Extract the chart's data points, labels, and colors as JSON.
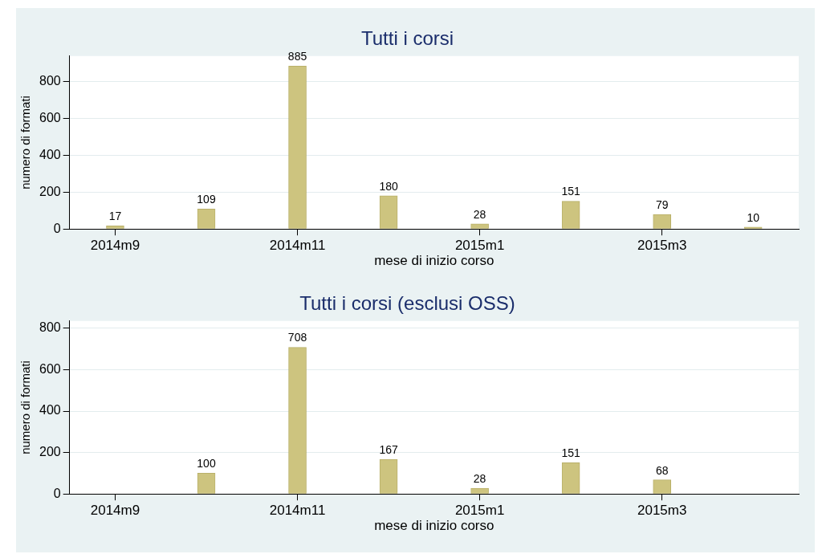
{
  "chart_data": [
    {
      "type": "bar",
      "title": "Tutti i corsi",
      "xlabel": "mese di inizio corso",
      "ylabel": "numero di formati",
      "categories": [
        "2014m9",
        null,
        "2014m11",
        null,
        "2015m1",
        null,
        "2015m3",
        null
      ],
      "values": [
        17,
        109,
        885,
        180,
        28,
        151,
        79,
        10
      ],
      "color": "#cdc47f",
      "ylim": [
        0,
        940
      ],
      "yticks": [
        0,
        200,
        400,
        600,
        800
      ],
      "grid": "y",
      "data_labels": true
    },
    {
      "type": "bar",
      "title": "Tutti i corsi (esclusi OSS)",
      "xlabel": "mese di inizio corso",
      "ylabel": "numero di formati",
      "categories": [
        "2014m9",
        null,
        "2014m11",
        null,
        "2015m1",
        null,
        "2015m3",
        null
      ],
      "values": [
        null,
        100,
        708,
        167,
        28,
        151,
        68,
        null
      ],
      "color": "#cdc47f",
      "ylim": [
        0,
        835
      ],
      "yticks": [
        0,
        200,
        400,
        600,
        800
      ],
      "grid": "y",
      "data_labels": true
    }
  ]
}
